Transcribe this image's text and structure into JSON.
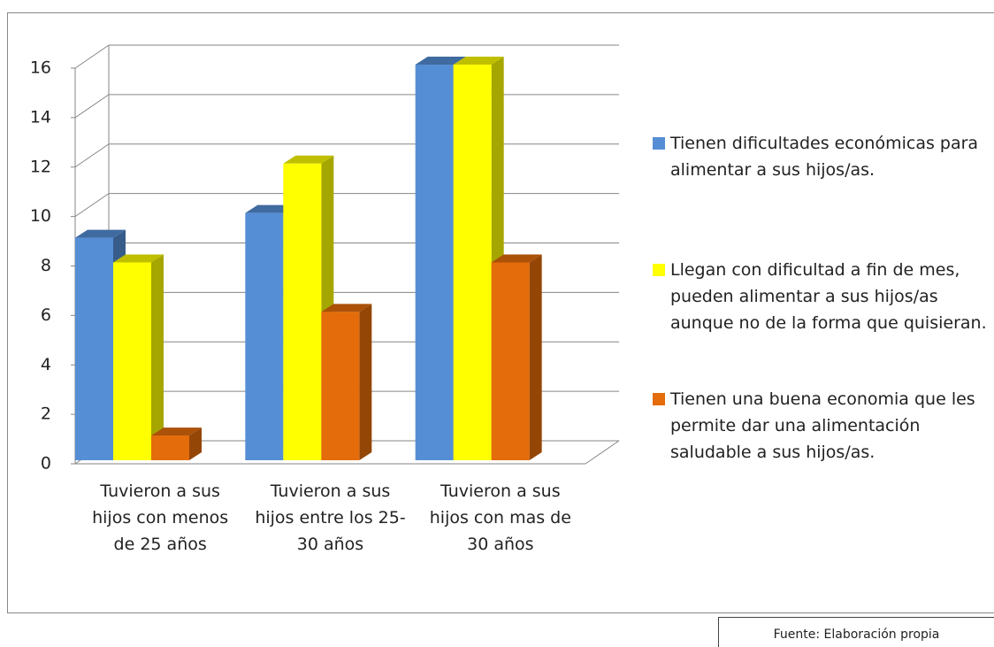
{
  "chart_data": {
    "type": "bar3d",
    "categories": [
      "Tuvieron a sus hijos con menos de 25 años",
      "Tuvieron a sus hijos entre los 25-30 años",
      "Tuvieron a sus hijos con mas de 30 años"
    ],
    "series": [
      {
        "name": "Tienen dificultades económicas para alimentar a sus hijos/as.",
        "color": "#558ed5",
        "values": [
          9,
          10,
          16
        ]
      },
      {
        "name": "Llegan con dificultad a fin de mes, pueden alimentar a sus hijos/as aunque no de la forma que quisieran.",
        "color": "#ffff00",
        "values": [
          8,
          12,
          16
        ]
      },
      {
        "name": "Tienen una buena economia que les permite dar una alimentación saludable a sus hijos/as.",
        "color": "#e46c0a",
        "values": [
          1,
          6,
          8
        ]
      }
    ],
    "ylim": [
      0,
      16
    ],
    "yticks": [
      0,
      2,
      4,
      6,
      8,
      10,
      12,
      14,
      16
    ],
    "grid": true,
    "legend": "right",
    "source": "Fuente: Elaboración propia"
  }
}
